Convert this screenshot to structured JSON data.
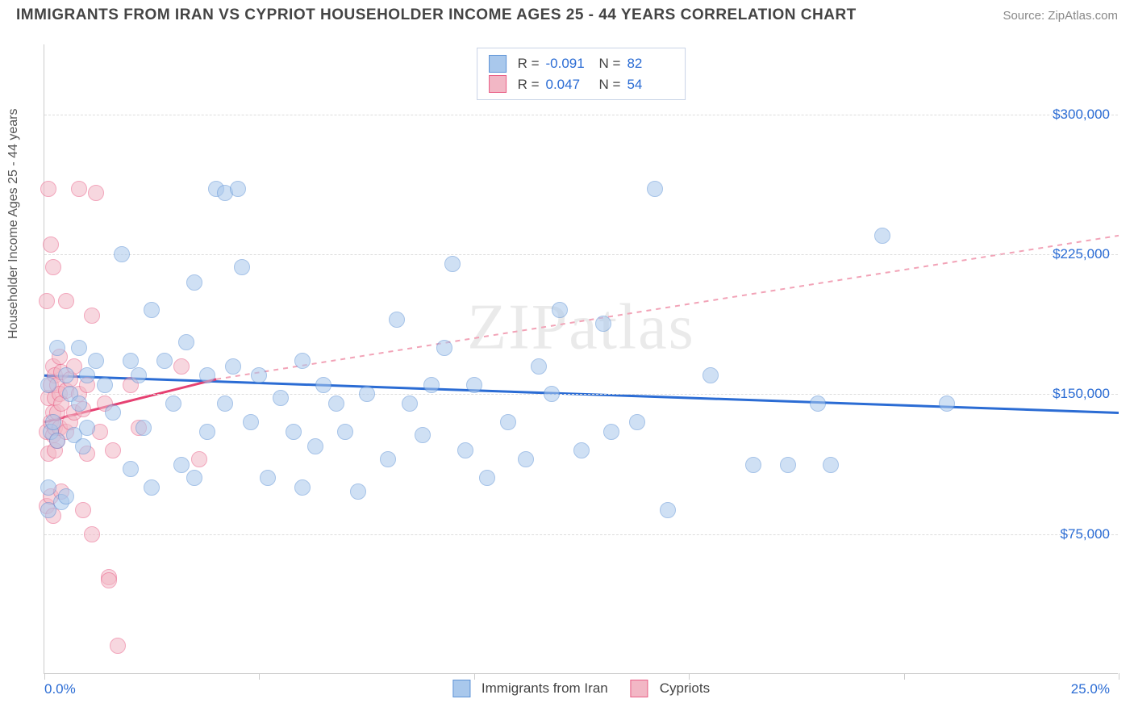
{
  "header": {
    "title": "IMMIGRANTS FROM IRAN VS CYPRIOT HOUSEHOLDER INCOME AGES 25 - 44 YEARS CORRELATION CHART",
    "source": "Source: ZipAtlas.com"
  },
  "chart": {
    "type": "scatter",
    "watermark": "ZIPatlas",
    "ylabel": "Householder Income Ages 25 - 44 years",
    "x_axis": {
      "min": 0.0,
      "max": 25.0,
      "min_label": "0.0%",
      "max_label": "25.0%",
      "tick_step": 5.0
    },
    "y_axis": {
      "min": 0,
      "max": 337500,
      "ticks": [
        75000,
        150000,
        225000,
        300000
      ],
      "tick_labels": [
        "$75,000",
        "$150,000",
        "$225,000",
        "$300,000"
      ]
    },
    "grid_color": "#dddddd",
    "axis_color": "#cccccc",
    "background_color": "#ffffff",
    "tick_label_color": "#2b6cd4",
    "series": [
      {
        "name": "Immigrants from Iran",
        "fill": "#a9c8ec",
        "stroke": "#5e93d6",
        "fill_opacity": 0.55,
        "marker_radius": 10,
        "r": -0.091,
        "n": 82,
        "trend": {
          "y_at_xmin": 160000,
          "y_at_xmax": 140000,
          "color": "#2b6cd4",
          "width": 3,
          "dash": "none"
        },
        "points": [
          [
            0.1,
            155000
          ],
          [
            0.1,
            100000
          ],
          [
            0.1,
            88000
          ],
          [
            0.15,
            130000
          ],
          [
            0.2,
            135000
          ],
          [
            0.3,
            175000
          ],
          [
            0.3,
            125000
          ],
          [
            0.4,
            92000
          ],
          [
            0.5,
            160000
          ],
          [
            0.5,
            95000
          ],
          [
            0.6,
            150000
          ],
          [
            0.7,
            128000
          ],
          [
            0.8,
            175000
          ],
          [
            0.8,
            145000
          ],
          [
            0.9,
            122000
          ],
          [
            1.0,
            160000
          ],
          [
            1.0,
            132000
          ],
          [
            1.2,
            168000
          ],
          [
            1.4,
            155000
          ],
          [
            1.6,
            140000
          ],
          [
            1.8,
            225000
          ],
          [
            2.0,
            110000
          ],
          [
            2.0,
            168000
          ],
          [
            2.2,
            160000
          ],
          [
            2.3,
            132000
          ],
          [
            2.5,
            195000
          ],
          [
            2.5,
            100000
          ],
          [
            2.8,
            168000
          ],
          [
            3.0,
            145000
          ],
          [
            3.2,
            112000
          ],
          [
            3.3,
            178000
          ],
          [
            3.5,
            210000
          ],
          [
            3.5,
            105000
          ],
          [
            3.8,
            160000
          ],
          [
            3.8,
            130000
          ],
          [
            4.0,
            260000
          ],
          [
            4.2,
            258000
          ],
          [
            4.2,
            145000
          ],
          [
            4.4,
            165000
          ],
          [
            4.5,
            260000
          ],
          [
            4.6,
            218000
          ],
          [
            4.8,
            135000
          ],
          [
            5.0,
            160000
          ],
          [
            5.2,
            105000
          ],
          [
            5.5,
            148000
          ],
          [
            5.8,
            130000
          ],
          [
            6.0,
            168000
          ],
          [
            6.0,
            100000
          ],
          [
            6.3,
            122000
          ],
          [
            6.5,
            155000
          ],
          [
            6.8,
            145000
          ],
          [
            7.0,
            130000
          ],
          [
            7.3,
            98000
          ],
          [
            7.5,
            150000
          ],
          [
            8.0,
            115000
          ],
          [
            8.2,
            190000
          ],
          [
            8.5,
            145000
          ],
          [
            8.8,
            128000
          ],
          [
            9.0,
            155000
          ],
          [
            9.3,
            175000
          ],
          [
            9.5,
            220000
          ],
          [
            9.8,
            120000
          ],
          [
            10.0,
            155000
          ],
          [
            10.3,
            105000
          ],
          [
            10.8,
            135000
          ],
          [
            11.2,
            115000
          ],
          [
            11.5,
            165000
          ],
          [
            11.8,
            150000
          ],
          [
            12.0,
            195000
          ],
          [
            12.5,
            120000
          ],
          [
            13.0,
            188000
          ],
          [
            13.2,
            130000
          ],
          [
            13.8,
            135000
          ],
          [
            14.2,
            260000
          ],
          [
            14.5,
            88000
          ],
          [
            15.5,
            160000
          ],
          [
            16.5,
            112000
          ],
          [
            17.3,
            112000
          ],
          [
            18.0,
            145000
          ],
          [
            18.3,
            112000
          ],
          [
            19.5,
            235000
          ],
          [
            21.0,
            145000
          ]
        ]
      },
      {
        "name": "Cypriots",
        "fill": "#f2b7c5",
        "stroke": "#e95f86",
        "fill_opacity": 0.55,
        "marker_radius": 10,
        "r": 0.047,
        "n": 54,
        "trend_solid": {
          "y_at_xmin": 135000,
          "y_at_xend": 158000,
          "x_end": 4.0,
          "color": "#e64172",
          "width": 3
        },
        "trend_dashed": {
          "y_at_xstart": 158000,
          "x_start": 4.0,
          "y_at_xmax": 235000,
          "color": "#f2a3b7",
          "width": 2,
          "dash": "6,6"
        },
        "points": [
          [
            0.05,
            200000
          ],
          [
            0.05,
            130000
          ],
          [
            0.05,
            90000
          ],
          [
            0.1,
            260000
          ],
          [
            0.1,
            148000
          ],
          [
            0.1,
            118000
          ],
          [
            0.15,
            230000
          ],
          [
            0.15,
            155000
          ],
          [
            0.15,
            135000
          ],
          [
            0.15,
            95000
          ],
          [
            0.2,
            218000
          ],
          [
            0.2,
            165000
          ],
          [
            0.2,
            140000
          ],
          [
            0.2,
            128000
          ],
          [
            0.2,
            85000
          ],
          [
            0.25,
            160000
          ],
          [
            0.25,
            148000
          ],
          [
            0.25,
            132000
          ],
          [
            0.25,
            120000
          ],
          [
            0.3,
            155000
          ],
          [
            0.3,
            140000
          ],
          [
            0.3,
            125000
          ],
          [
            0.35,
            170000
          ],
          [
            0.35,
            150000
          ],
          [
            0.35,
            132000
          ],
          [
            0.4,
            162000
          ],
          [
            0.4,
            145000
          ],
          [
            0.4,
            98000
          ],
          [
            0.5,
            200000
          ],
          [
            0.5,
            152000
          ],
          [
            0.5,
            130000
          ],
          [
            0.6,
            158000
          ],
          [
            0.6,
            135000
          ],
          [
            0.7,
            165000
          ],
          [
            0.7,
            140000
          ],
          [
            0.8,
            150000
          ],
          [
            0.8,
            260000
          ],
          [
            0.9,
            142000
          ],
          [
            0.9,
            88000
          ],
          [
            1.0,
            155000
          ],
          [
            1.0,
            118000
          ],
          [
            1.1,
            192000
          ],
          [
            1.1,
            75000
          ],
          [
            1.2,
            258000
          ],
          [
            1.3,
            130000
          ],
          [
            1.4,
            145000
          ],
          [
            1.5,
            52000
          ],
          [
            1.5,
            50000
          ],
          [
            1.6,
            120000
          ],
          [
            1.7,
            15000
          ],
          [
            2.0,
            155000
          ],
          [
            2.2,
            132000
          ],
          [
            3.2,
            165000
          ],
          [
            3.6,
            115000
          ]
        ]
      }
    ],
    "legend_top": {
      "rows": [
        {
          "swatch_fill": "#a9c8ec",
          "swatch_stroke": "#5e93d6",
          "r_label": "R =",
          "r_val": "-0.091",
          "n_label": "N =",
          "n_val": "82"
        },
        {
          "swatch_fill": "#f2b7c5",
          "swatch_stroke": "#e95f86",
          "r_label": "R =",
          "r_val": "0.047",
          "n_label": "N =",
          "n_val": "54"
        }
      ]
    },
    "legend_bottom": {
      "items": [
        {
          "swatch_fill": "#a9c8ec",
          "swatch_stroke": "#5e93d6",
          "label": "Immigrants from Iran"
        },
        {
          "swatch_fill": "#f2b7c5",
          "swatch_stroke": "#e95f86",
          "label": "Cypriots"
        }
      ]
    }
  }
}
